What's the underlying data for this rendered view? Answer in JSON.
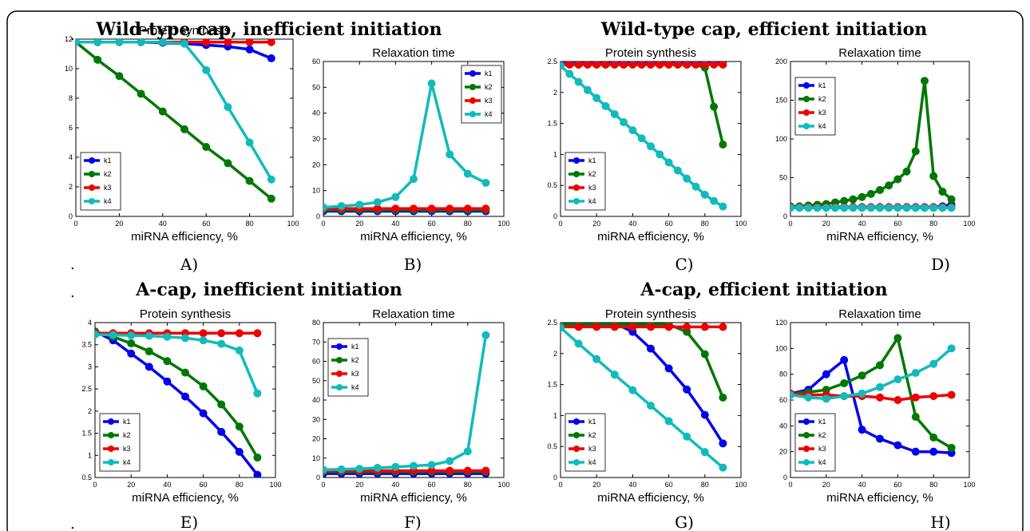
{
  "dot_marks": [
    ".",
    ".",
    ".",
    "."
  ],
  "panels": [
    {
      "title": "Wild-type cap, inefficient initiation",
      "labels": [
        "A)",
        "B)"
      ]
    },
    {
      "title": "Wild-type cap, efficient initiation",
      "labels": [
        "C)",
        "D)"
      ]
    },
    {
      "title": "A-cap, inefficient initiation",
      "labels": [
        "E)",
        "F)"
      ]
    },
    {
      "title": "A-cap, efficient initiation",
      "labels": [
        "G)",
        "H)"
      ]
    }
  ],
  "chart_data": [
    {
      "id": "A",
      "type": "line",
      "title": "Protein synthesis",
      "xlabel": "miRNA efficiency, %",
      "xlim": [
        0,
        100
      ],
      "xticks": [
        0,
        20,
        40,
        60,
        80,
        100
      ],
      "ylim": [
        0,
        12
      ],
      "yticks": [
        0,
        2,
        4,
        6,
        8,
        10,
        12
      ],
      "ytick_labels": [
        "0",
        "2",
        "4",
        "6",
        "8",
        "10",
        "12"
      ],
      "legend_position": "bottom-left",
      "x": [
        0,
        10,
        20,
        30,
        40,
        50,
        60,
        70,
        80,
        90
      ],
      "series": [
        {
          "name": "k1",
          "color": "#0000ee",
          "values": [
            11.8,
            11.8,
            11.8,
            11.8,
            11.75,
            11.7,
            11.6,
            11.5,
            11.3,
            10.7
          ]
        },
        {
          "name": "k2",
          "color": "#007700",
          "values": [
            11.8,
            10.6,
            9.5,
            8.3,
            7.1,
            5.9,
            4.7,
            3.6,
            2.4,
            1.2
          ]
        },
        {
          "name": "k3",
          "color": "#ee0000",
          "values": [
            11.8,
            11.8,
            11.8,
            11.8,
            11.8,
            11.8,
            11.8,
            11.8,
            11.8,
            11.8
          ]
        },
        {
          "name": "k4",
          "color": "#11bbbb",
          "values": [
            11.8,
            11.8,
            11.8,
            11.8,
            11.8,
            11.7,
            9.9,
            7.4,
            5.0,
            2.5
          ]
        }
      ]
    },
    {
      "id": "B",
      "type": "line",
      "title": "Relaxation time",
      "xlabel": "miRNA efficiency, %",
      "xlim": [
        0,
        100
      ],
      "xticks": [
        0,
        20,
        40,
        60,
        80,
        100
      ],
      "ylim": [
        0,
        60
      ],
      "yticks": [
        0,
        10,
        20,
        30,
        40,
        50,
        60
      ],
      "ytick_labels": [
        "0",
        "10",
        "20",
        "30",
        "40",
        "50",
        "60"
      ],
      "legend_position": "top-right",
      "x": [
        0,
        10,
        20,
        30,
        40,
        50,
        60,
        70,
        80,
        90
      ],
      "series": [
        {
          "name": "k1",
          "color": "#0000ee",
          "values": [
            2,
            2,
            2,
            2,
            2,
            2,
            2,
            2,
            2,
            2
          ]
        },
        {
          "name": "k2",
          "color": "#007700",
          "values": [
            2.5,
            2.5,
            2.5,
            2.5,
            2.5,
            2.5,
            2.5,
            2.5,
            2.5,
            2.5
          ]
        },
        {
          "name": "k3",
          "color": "#ee0000",
          "values": [
            3,
            3,
            3,
            3,
            3,
            3,
            3,
            3,
            3,
            3
          ]
        },
        {
          "name": "k4",
          "color": "#11bbbb",
          "values": [
            3.5,
            4,
            4.5,
            5.5,
            7.5,
            14.5,
            51.5,
            24,
            16.5,
            13
          ]
        }
      ]
    },
    {
      "id": "C",
      "type": "line",
      "title": "Protein synthesis",
      "xlabel": "miRNA efficiency, %",
      "xlim": [
        0,
        100
      ],
      "xticks": [
        0,
        20,
        40,
        60,
        80,
        100
      ],
      "ylim": [
        0,
        2.5
      ],
      "yticks": [
        0,
        0.5,
        1,
        1.5,
        2,
        2.5
      ],
      "ytick_labels": [
        "0",
        "0.5",
        "1",
        "1.5",
        "2",
        "2.5"
      ],
      "legend_position": "bottom-left",
      "x_dense": [
        0,
        5,
        10,
        15,
        20,
        25,
        30,
        35,
        40,
        45,
        50,
        55,
        60,
        65,
        70,
        75,
        80,
        85,
        90
      ],
      "series": [
        {
          "name": "k1",
          "color": "#0000ee",
          "x_key": "x_dense",
          "values": [
            2.5,
            2.5,
            2.5,
            2.5,
            2.5,
            2.5,
            2.5,
            2.5,
            2.5,
            2.5,
            2.5,
            2.5,
            2.5,
            2.5,
            2.5,
            2.5,
            2.5,
            2.5,
            2.5
          ]
        },
        {
          "name": "k2",
          "color": "#007700",
          "x_key": "x_dense",
          "values": [
            2.45,
            2.45,
            2.45,
            2.45,
            2.45,
            2.45,
            2.45,
            2.45,
            2.45,
            2.45,
            2.45,
            2.45,
            2.45,
            2.45,
            2.45,
            2.45,
            2.4,
            1.77,
            1.16
          ]
        },
        {
          "name": "k3",
          "color": "#ee0000",
          "x_key": "x_dense",
          "values": [
            2.45,
            2.45,
            2.45,
            2.45,
            2.45,
            2.45,
            2.45,
            2.45,
            2.45,
            2.45,
            2.45,
            2.45,
            2.45,
            2.45,
            2.45,
            2.45,
            2.45,
            2.45,
            2.45
          ]
        },
        {
          "name": "k4",
          "color": "#11bbbb",
          "x_key": "x_dense",
          "values": [
            2.43,
            2.3,
            2.17,
            2.04,
            1.91,
            1.78,
            1.65,
            1.52,
            1.39,
            1.26,
            1.13,
            1.0,
            0.87,
            0.74,
            0.61,
            0.48,
            0.35,
            0.25,
            0.16
          ]
        }
      ]
    },
    {
      "id": "D",
      "type": "line",
      "title": "Relaxation time",
      "xlabel": "miRNA efficiency, %",
      "xlim": [
        0,
        100
      ],
      "xticks": [
        0,
        20,
        40,
        60,
        80,
        100
      ],
      "ylim": [
        0,
        200
      ],
      "yticks": [
        0,
        50,
        100,
        150,
        200
      ],
      "ytick_labels": [
        "0",
        "50",
        "100",
        "150",
        "200"
      ],
      "legend_position": "top-left",
      "x_dense": [
        0,
        5,
        10,
        15,
        20,
        25,
        30,
        35,
        40,
        45,
        50,
        55,
        60,
        65,
        70,
        75,
        80,
        85,
        90
      ],
      "series": [
        {
          "name": "k1",
          "color": "#0000ee",
          "x_key": "x_dense",
          "values": [
            12,
            12,
            12,
            12,
            12,
            12,
            12,
            12,
            12,
            12,
            12,
            12,
            12,
            12,
            12,
            12,
            12,
            13,
            15
          ]
        },
        {
          "name": "k2",
          "color": "#007700",
          "x_key": "x_dense",
          "values": [
            13,
            13,
            14,
            15,
            16,
            18,
            20,
            22,
            25,
            29,
            34,
            40,
            48,
            58,
            84,
            175,
            52,
            32,
            22
          ]
        },
        {
          "name": "k3",
          "color": "#ee0000",
          "x_key": "x_dense",
          "values": [
            12,
            12,
            12,
            12,
            12,
            12,
            12,
            12,
            12,
            12,
            12,
            12,
            12,
            12,
            12,
            12,
            12,
            12,
            12
          ]
        },
        {
          "name": "k4",
          "color": "#11bbbb",
          "x_key": "x_dense",
          "values": [
            11,
            11,
            11,
            11,
            11,
            11,
            11,
            11,
            11,
            11,
            11,
            11,
            11,
            11,
            11,
            11,
            11,
            11,
            11
          ]
        }
      ]
    },
    {
      "id": "E",
      "type": "line",
      "title": "Protein synthesis",
      "xlabel": "miRNA efficiency, %",
      "xlim": [
        0,
        100
      ],
      "xticks": [
        0,
        20,
        40,
        60,
        80,
        100
      ],
      "ylim": [
        0.5,
        4
      ],
      "yticks": [
        0.5,
        1,
        1.5,
        2,
        2.5,
        3,
        3.5,
        4
      ],
      "ytick_labels": [
        "0.5",
        "1",
        "1.5",
        "2",
        "2.5",
        "3",
        "3.5",
        "4"
      ],
      "legend_position": "bottom-left",
      "x": [
        0,
        10,
        20,
        30,
        40,
        50,
        60,
        70,
        80,
        90
      ],
      "series": [
        {
          "name": "k1",
          "color": "#0000ee",
          "values": [
            3.8,
            3.6,
            3.3,
            3.0,
            2.67,
            2.33,
            1.95,
            1.53,
            1.08,
            0.56
          ]
        },
        {
          "name": "k2",
          "color": "#007700",
          "values": [
            3.8,
            3.68,
            3.53,
            3.35,
            3.13,
            2.87,
            2.56,
            2.15,
            1.65,
            0.95
          ]
        },
        {
          "name": "k3",
          "color": "#ee0000",
          "values": [
            3.76,
            3.76,
            3.76,
            3.76,
            3.76,
            3.76,
            3.76,
            3.76,
            3.76,
            3.76
          ]
        },
        {
          "name": "k4",
          "color": "#11bbbb",
          "values": [
            3.73,
            3.72,
            3.71,
            3.7,
            3.68,
            3.65,
            3.6,
            3.52,
            3.37,
            2.4
          ]
        }
      ]
    },
    {
      "id": "F",
      "type": "line",
      "title": "Relaxation time",
      "xlabel": "miRNA efficiency, %",
      "xlim": [
        0,
        100
      ],
      "xticks": [
        0,
        20,
        40,
        60,
        80,
        100
      ],
      "ylim": [
        0,
        80
      ],
      "yticks": [
        0,
        10,
        20,
        30,
        40,
        50,
        60,
        70,
        80
      ],
      "ytick_labels": [
        "0",
        "10",
        "20",
        "30",
        "40",
        "50",
        "60",
        "70",
        "80"
      ],
      "legend_position": "top-left",
      "x": [
        0,
        10,
        20,
        30,
        40,
        50,
        60,
        70,
        80,
        90
      ],
      "series": [
        {
          "name": "k1",
          "color": "#0000ee",
          "values": [
            2,
            2,
            2,
            2,
            2,
            2,
            2,
            2,
            2,
            2
          ]
        },
        {
          "name": "k2",
          "color": "#007700",
          "values": [
            3,
            3,
            3,
            3,
            3,
            3,
            3,
            3,
            3,
            3
          ]
        },
        {
          "name": "k3",
          "color": "#ee0000",
          "values": [
            3.5,
            3.5,
            3.5,
            3.5,
            3.5,
            3.5,
            3.5,
            3.5,
            3.5,
            3.5
          ]
        },
        {
          "name": "k4",
          "color": "#11bbbb",
          "values": [
            4,
            4.2,
            4.5,
            5,
            5.5,
            6,
            6.5,
            8.5,
            13.5,
            73.5
          ]
        }
      ]
    },
    {
      "id": "G",
      "type": "line",
      "title": "Protein synthesis",
      "xlabel": "miRNA efficiency, %",
      "xlim": [
        0,
        100
      ],
      "xticks": [
        0,
        20,
        40,
        60,
        80,
        100
      ],
      "ylim": [
        0,
        2.5
      ],
      "yticks": [
        0,
        0.5,
        1,
        1.5,
        2,
        2.5
      ],
      "ytick_labels": [
        "0",
        "0.5",
        "1",
        "1.5",
        "2",
        "2.5"
      ],
      "legend_position": "bottom-left",
      "x": [
        0,
        10,
        20,
        30,
        40,
        50,
        60,
        70,
        80,
        90
      ],
      "series": [
        {
          "name": "k1",
          "color": "#0000ee",
          "values": [
            2.49,
            2.49,
            2.49,
            2.49,
            2.35,
            2.08,
            1.76,
            1.42,
            1.01,
            0.55
          ]
        },
        {
          "name": "k2",
          "color": "#007700",
          "values": [
            2.47,
            2.47,
            2.47,
            2.47,
            2.47,
            2.47,
            2.47,
            2.35,
            1.99,
            1.29
          ]
        },
        {
          "name": "k3",
          "color": "#ee0000",
          "values": [
            2.43,
            2.43,
            2.43,
            2.43,
            2.43,
            2.43,
            2.43,
            2.43,
            2.43,
            2.43
          ]
        },
        {
          "name": "k4",
          "color": "#11bbbb",
          "values": [
            2.42,
            2.16,
            1.91,
            1.66,
            1.41,
            1.16,
            0.91,
            0.66,
            0.41,
            0.16
          ]
        }
      ]
    },
    {
      "id": "H",
      "type": "line",
      "title": "Relaxation time",
      "xlabel": "miRNA efficiency, %",
      "xlim": [
        0,
        100
      ],
      "xticks": [
        0,
        20,
        40,
        60,
        80,
        100
      ],
      "ylim": [
        0,
        120
      ],
      "yticks": [
        0,
        20,
        40,
        60,
        80,
        100,
        120
      ],
      "ytick_labels": [
        "0",
        "20",
        "40",
        "60",
        "80",
        "100",
        "120"
      ],
      "legend_position": "bottom-left",
      "x": [
        0,
        10,
        20,
        30,
        40,
        50,
        60,
        70,
        80,
        90
      ],
      "series": [
        {
          "name": "k1",
          "color": "#0000ee",
          "values": [
            65,
            68,
            80,
            91,
            37,
            30,
            25,
            20,
            20,
            19
          ]
        },
        {
          "name": "k2",
          "color": "#007700",
          "values": [
            65,
            66,
            68,
            73,
            79,
            87,
            108,
            47,
            31,
            23
          ]
        },
        {
          "name": "k3",
          "color": "#ee0000",
          "values": [
            65,
            64,
            64,
            63,
            63,
            62,
            60,
            62,
            63,
            64
          ]
        },
        {
          "name": "k4",
          "color": "#11bbbb",
          "values": [
            64,
            62,
            61,
            63,
            65,
            70,
            76,
            81,
            88,
            100
          ]
        }
      ]
    }
  ]
}
